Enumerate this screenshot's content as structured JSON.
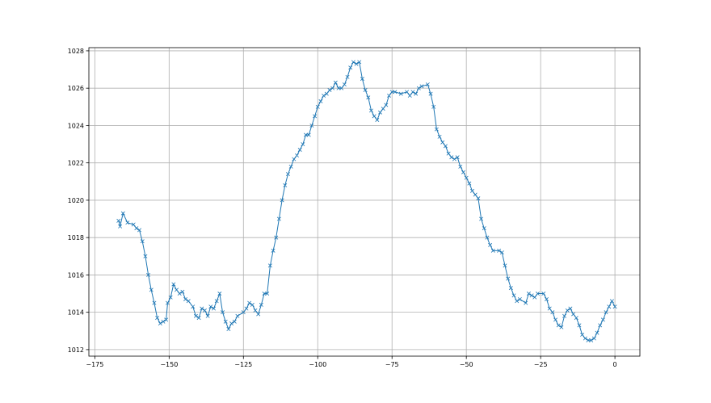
{
  "chart_data": {
    "type": "line",
    "title": "",
    "xlabel": "",
    "ylabel": "",
    "xlim": [
      -177,
      8.4
    ],
    "ylim": [
      1011.65,
      1028.17
    ],
    "xticks": [
      -175,
      -150,
      -125,
      -100,
      -75,
      -50,
      -25,
      0
    ],
    "yticks": [
      1012,
      1014,
      1016,
      1018,
      1020,
      1022,
      1024,
      1026,
      1028
    ],
    "grid": true,
    "marker": "x",
    "color": "#1f77b4",
    "series": [
      {
        "x": [
          -167,
          -166.5,
          -165.5,
          -164,
          -162,
          -161,
          -160,
          -159,
          -158,
          -157,
          -156,
          -155,
          -154,
          -153,
          -152,
          -151,
          -150.5,
          -149.5,
          -148.5,
          -147.5,
          -146.5,
          -145.5,
          -144.5,
          -143.5,
          -142,
          -141,
          -140,
          -139,
          -138,
          -137,
          -136,
          -135,
          -134,
          -133,
          -132,
          -131,
          -130,
          -129,
          -128,
          -127,
          -125,
          -124,
          -123,
          -122,
          -121,
          -120,
          -119,
          -118,
          -117,
          -116,
          -115,
          -114,
          -113,
          -112,
          -111,
          -110,
          -109,
          -108,
          -107,
          -106,
          -105,
          -104,
          -103,
          -102,
          -101,
          -100,
          -99,
          -98,
          -97,
          -96,
          -95,
          -94,
          -93,
          -92,
          -91,
          -90,
          -89,
          -88,
          -87,
          -86,
          -85,
          -84,
          -83,
          -82,
          -81,
          -80,
          -79,
          -78,
          -77,
          -76,
          -75,
          -74,
          -72,
          -70,
          -69,
          -68,
          -67,
          -66,
          -65,
          -63,
          -62,
          -61,
          -60,
          -59,
          -58,
          -57,
          -56,
          -55,
          -54,
          -53,
          -52,
          -51,
          -50,
          -49,
          -48,
          -47,
          -46,
          -45,
          -44,
          -43,
          -42,
          -41,
          -39,
          -38,
          -37,
          -36,
          -35,
          -34,
          -33,
          -32,
          -30,
          -29,
          -28,
          -27,
          -26,
          -24,
          -23,
          -22,
          -21,
          -20,
          -19,
          -18,
          -17,
          -16,
          -15,
          -14,
          -13,
          -12,
          -11,
          -10,
          -9,
          -8,
          -7,
          -6,
          -5,
          -4,
          -3,
          -2,
          -1,
          0
        ],
        "y": [
          1018.9,
          1018.6,
          1019.3,
          1018.8,
          1018.7,
          1018.5,
          1018.4,
          1017.8,
          1017.0,
          1016.0,
          1015.2,
          1014.5,
          1013.7,
          1013.4,
          1013.5,
          1013.6,
          1014.5,
          1014.8,
          1015.5,
          1015.2,
          1015.0,
          1015.1,
          1014.7,
          1014.6,
          1014.3,
          1013.8,
          1013.7,
          1014.2,
          1014.1,
          1013.8,
          1014.3,
          1014.2,
          1014.6,
          1015.0,
          1014.0,
          1013.5,
          1013.1,
          1013.4,
          1013.5,
          1013.8,
          1014.0,
          1014.2,
          1014.5,
          1014.4,
          1014.1,
          1013.9,
          1014.4,
          1015.0,
          1015.0,
          1016.5,
          1017.3,
          1018.0,
          1019.0,
          1020.0,
          1020.8,
          1021.4,
          1021.8,
          1022.2,
          1022.4,
          1022.7,
          1023.0,
          1023.5,
          1023.5,
          1024.0,
          1024.5,
          1025.0,
          1025.3,
          1025.6,
          1025.7,
          1025.9,
          1026.0,
          1026.3,
          1026.0,
          1026.0,
          1026.2,
          1026.6,
          1027.1,
          1027.4,
          1027.3,
          1027.4,
          1026.5,
          1025.9,
          1025.5,
          1024.8,
          1024.5,
          1024.3,
          1024.7,
          1024.9,
          1025.1,
          1025.6,
          1025.8,
          1025.8,
          1025.7,
          1025.8,
          1025.6,
          1025.8,
          1025.7,
          1026.0,
          1026.1,
          1026.2,
          1025.7,
          1025.0,
          1023.8,
          1023.4,
          1023.1,
          1022.9,
          1022.5,
          1022.3,
          1022.2,
          1022.3,
          1021.8,
          1021.5,
          1021.2,
          1020.9,
          1020.5,
          1020.3,
          1020.1,
          1019.0,
          1018.5,
          1018.0,
          1017.6,
          1017.3,
          1017.3,
          1017.2,
          1016.5,
          1015.8,
          1015.3,
          1014.9,
          1014.6,
          1014.7,
          1014.5,
          1015.0,
          1014.9,
          1014.8,
          1015.0,
          1015.0,
          1014.7,
          1014.2,
          1014.0,
          1013.6,
          1013.3,
          1013.2,
          1013.8,
          1014.1,
          1014.2,
          1013.9,
          1013.7,
          1013.3,
          1012.8,
          1012.6,
          1012.5,
          1012.5,
          1012.6,
          1012.9,
          1013.3,
          1013.6,
          1014.0,
          1014.3,
          1014.6,
          1014.3
        ]
      }
    ]
  }
}
